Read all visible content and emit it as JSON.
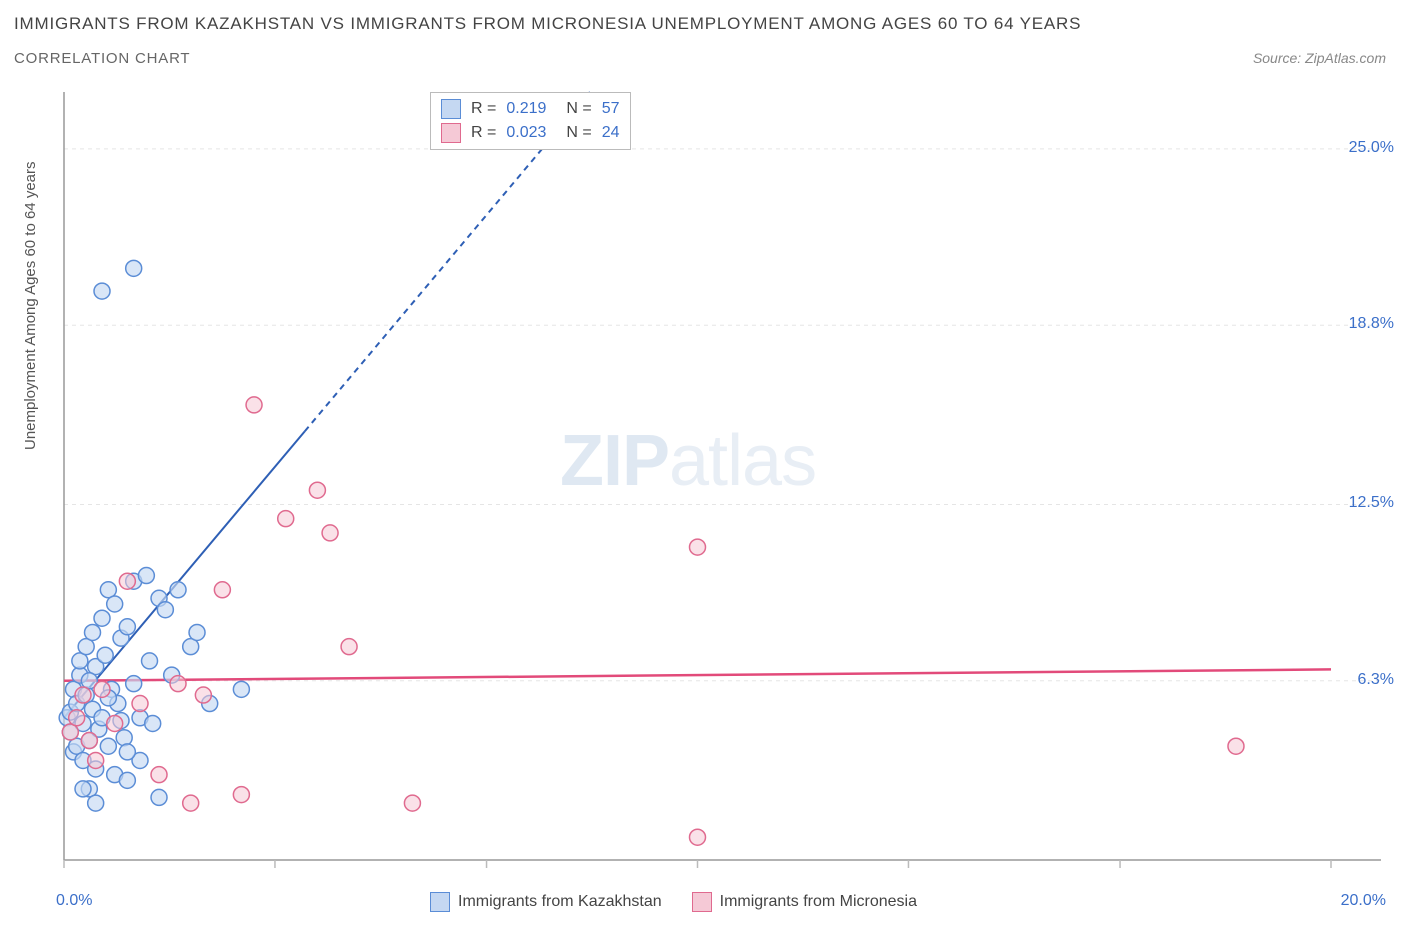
{
  "title_line1": "IMMIGRANTS FROM KAZAKHSTAN VS IMMIGRANTS FROM MICRONESIA UNEMPLOYMENT AMONG AGES 60 TO 64 YEARS",
  "title_line2": "CORRELATION CHART",
  "source": "Source: ZipAtlas.com",
  "y_axis_label": "Unemployment Among Ages 60 to 64 years",
  "watermark_bold": "ZIP",
  "watermark_rest": "atlas",
  "chart": {
    "type": "scatter",
    "background_color": "#ffffff",
    "grid_color": "#e5e5e5",
    "axis_color": "#999999",
    "tick_color": "#bbbbbb",
    "xlim": [
      0,
      20
    ],
    "ylim": [
      0,
      27
    ],
    "x_ticks": [
      0,
      3.33,
      6.67,
      10,
      13.33,
      16.67,
      20
    ],
    "y_grid": [
      6.3,
      12.5,
      18.8,
      25.0
    ],
    "y_tick_labels": [
      "6.3%",
      "12.5%",
      "18.8%",
      "25.0%"
    ],
    "x_min_label": "0.0%",
    "x_max_label": "20.0%",
    "marker_radius": 8,
    "marker_stroke_width": 1.5,
    "series": [
      {
        "name": "Immigrants from Kazakhstan",
        "fill": "#c5d8f2",
        "stroke": "#5b8dd6",
        "fill_opacity": 0.65,
        "R": "0.219",
        "N": "57",
        "trend": {
          "x1": 0,
          "y1": 5.0,
          "x2": 20,
          "y2": 58.0,
          "solid_until_x": 3.8,
          "color": "#2e5fb5",
          "width": 2,
          "dash": "6,5"
        },
        "points": [
          [
            0.05,
            5.0
          ],
          [
            0.1,
            4.5
          ],
          [
            0.1,
            5.2
          ],
          [
            0.15,
            3.8
          ],
          [
            0.15,
            6.0
          ],
          [
            0.2,
            4.0
          ],
          [
            0.2,
            5.5
          ],
          [
            0.25,
            6.5
          ],
          [
            0.25,
            7.0
          ],
          [
            0.3,
            3.5
          ],
          [
            0.3,
            4.8
          ],
          [
            0.35,
            5.8
          ],
          [
            0.35,
            7.5
          ],
          [
            0.4,
            2.5
          ],
          [
            0.4,
            4.2
          ],
          [
            0.45,
            8.0
          ],
          [
            0.45,
            5.3
          ],
          [
            0.5,
            6.8
          ],
          [
            0.5,
            3.2
          ],
          [
            0.55,
            4.6
          ],
          [
            0.6,
            8.5
          ],
          [
            0.6,
            5.0
          ],
          [
            0.65,
            7.2
          ],
          [
            0.7,
            9.5
          ],
          [
            0.7,
            4.0
          ],
          [
            0.75,
            6.0
          ],
          [
            0.8,
            9.0
          ],
          [
            0.8,
            3.0
          ],
          [
            0.85,
            5.5
          ],
          [
            0.9,
            7.8
          ],
          [
            0.95,
            4.3
          ],
          [
            1.0,
            8.2
          ],
          [
            1.0,
            2.8
          ],
          [
            1.1,
            9.8
          ],
          [
            1.1,
            6.2
          ],
          [
            1.2,
            5.0
          ],
          [
            1.2,
            3.5
          ],
          [
            1.3,
            10.0
          ],
          [
            1.35,
            7.0
          ],
          [
            1.4,
            4.8
          ],
          [
            1.5,
            9.2
          ],
          [
            1.5,
            2.2
          ],
          [
            1.6,
            8.8
          ],
          [
            1.7,
            6.5
          ],
          [
            1.8,
            9.5
          ],
          [
            2.0,
            7.5
          ],
          [
            2.1,
            8.0
          ],
          [
            2.3,
            5.5
          ],
          [
            2.8,
            6.0
          ],
          [
            0.6,
            20.0
          ],
          [
            1.1,
            20.8
          ],
          [
            0.5,
            2.0
          ],
          [
            0.3,
            2.5
          ],
          [
            1.0,
            3.8
          ],
          [
            0.4,
            6.3
          ],
          [
            0.7,
            5.7
          ],
          [
            0.9,
            4.9
          ]
        ]
      },
      {
        "name": "Immigrants from Micronesia",
        "fill": "#f5c9d6",
        "stroke": "#e06a8f",
        "fill_opacity": 0.55,
        "R": "0.023",
        "N": "24",
        "trend": {
          "x1": 0,
          "y1": 6.3,
          "x2": 20,
          "y2": 6.7,
          "solid_until_x": 20,
          "color": "#e24a7a",
          "width": 2.5,
          "dash": ""
        },
        "points": [
          [
            0.1,
            4.5
          ],
          [
            0.2,
            5.0
          ],
          [
            0.3,
            5.8
          ],
          [
            0.4,
            4.2
          ],
          [
            0.5,
            3.5
          ],
          [
            0.6,
            6.0
          ],
          [
            0.8,
            4.8
          ],
          [
            1.0,
            9.8
          ],
          [
            1.2,
            5.5
          ],
          [
            1.5,
            3.0
          ],
          [
            1.8,
            6.2
          ],
          [
            2.0,
            2.0
          ],
          [
            2.2,
            5.8
          ],
          [
            2.5,
            9.5
          ],
          [
            2.8,
            2.3
          ],
          [
            3.0,
            16.0
          ],
          [
            3.5,
            12.0
          ],
          [
            4.0,
            13.0
          ],
          [
            4.2,
            11.5
          ],
          [
            4.5,
            7.5
          ],
          [
            5.5,
            2.0
          ],
          [
            10.0,
            11.0
          ],
          [
            10.0,
            0.8
          ],
          [
            18.5,
            4.0
          ]
        ]
      }
    ]
  },
  "legend_top": {
    "r_label": "R =",
    "n_label": "N ="
  },
  "legend_bottom": {
    "items": [
      "Immigrants from Kazakhstan",
      "Immigrants from Micronesia"
    ]
  }
}
